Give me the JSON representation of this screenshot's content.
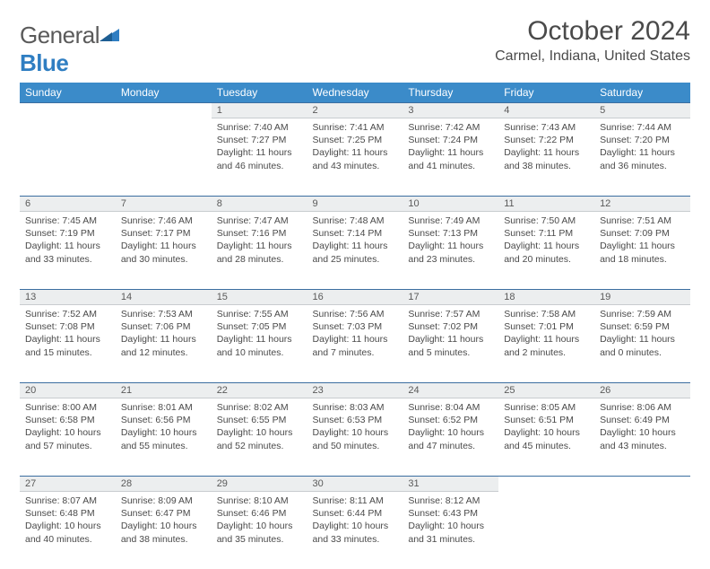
{
  "logo": {
    "text_general": "General",
    "text_blue": "Blue"
  },
  "title": "October 2024",
  "location": "Carmel, Indiana, United States",
  "day_headers": [
    "Sunday",
    "Monday",
    "Tuesday",
    "Wednesday",
    "Thursday",
    "Friday",
    "Saturday"
  ],
  "colors": {
    "header_bg": "#3b8bc9",
    "header_text": "#ffffff",
    "daynum_bg": "#eceeef",
    "rule": "#3b6ea0",
    "text": "#4a4a4a"
  },
  "weeks": [
    [
      null,
      null,
      {
        "n": "1",
        "sunrise": "7:40 AM",
        "sunset": "7:27 PM",
        "daylight": "11 hours and 46 minutes."
      },
      {
        "n": "2",
        "sunrise": "7:41 AM",
        "sunset": "7:25 PM",
        "daylight": "11 hours and 43 minutes."
      },
      {
        "n": "3",
        "sunrise": "7:42 AM",
        "sunset": "7:24 PM",
        "daylight": "11 hours and 41 minutes."
      },
      {
        "n": "4",
        "sunrise": "7:43 AM",
        "sunset": "7:22 PM",
        "daylight": "11 hours and 38 minutes."
      },
      {
        "n": "5",
        "sunrise": "7:44 AM",
        "sunset": "7:20 PM",
        "daylight": "11 hours and 36 minutes."
      }
    ],
    [
      {
        "n": "6",
        "sunrise": "7:45 AM",
        "sunset": "7:19 PM",
        "daylight": "11 hours and 33 minutes."
      },
      {
        "n": "7",
        "sunrise": "7:46 AM",
        "sunset": "7:17 PM",
        "daylight": "11 hours and 30 minutes."
      },
      {
        "n": "8",
        "sunrise": "7:47 AM",
        "sunset": "7:16 PM",
        "daylight": "11 hours and 28 minutes."
      },
      {
        "n": "9",
        "sunrise": "7:48 AM",
        "sunset": "7:14 PM",
        "daylight": "11 hours and 25 minutes."
      },
      {
        "n": "10",
        "sunrise": "7:49 AM",
        "sunset": "7:13 PM",
        "daylight": "11 hours and 23 minutes."
      },
      {
        "n": "11",
        "sunrise": "7:50 AM",
        "sunset": "7:11 PM",
        "daylight": "11 hours and 20 minutes."
      },
      {
        "n": "12",
        "sunrise": "7:51 AM",
        "sunset": "7:09 PM",
        "daylight": "11 hours and 18 minutes."
      }
    ],
    [
      {
        "n": "13",
        "sunrise": "7:52 AM",
        "sunset": "7:08 PM",
        "daylight": "11 hours and 15 minutes."
      },
      {
        "n": "14",
        "sunrise": "7:53 AM",
        "sunset": "7:06 PM",
        "daylight": "11 hours and 12 minutes."
      },
      {
        "n": "15",
        "sunrise": "7:55 AM",
        "sunset": "7:05 PM",
        "daylight": "11 hours and 10 minutes."
      },
      {
        "n": "16",
        "sunrise": "7:56 AM",
        "sunset": "7:03 PM",
        "daylight": "11 hours and 7 minutes."
      },
      {
        "n": "17",
        "sunrise": "7:57 AM",
        "sunset": "7:02 PM",
        "daylight": "11 hours and 5 minutes."
      },
      {
        "n": "18",
        "sunrise": "7:58 AM",
        "sunset": "7:01 PM",
        "daylight": "11 hours and 2 minutes."
      },
      {
        "n": "19",
        "sunrise": "7:59 AM",
        "sunset": "6:59 PM",
        "daylight": "11 hours and 0 minutes."
      }
    ],
    [
      {
        "n": "20",
        "sunrise": "8:00 AM",
        "sunset": "6:58 PM",
        "daylight": "10 hours and 57 minutes."
      },
      {
        "n": "21",
        "sunrise": "8:01 AM",
        "sunset": "6:56 PM",
        "daylight": "10 hours and 55 minutes."
      },
      {
        "n": "22",
        "sunrise": "8:02 AM",
        "sunset": "6:55 PM",
        "daylight": "10 hours and 52 minutes."
      },
      {
        "n": "23",
        "sunrise": "8:03 AM",
        "sunset": "6:53 PM",
        "daylight": "10 hours and 50 minutes."
      },
      {
        "n": "24",
        "sunrise": "8:04 AM",
        "sunset": "6:52 PM",
        "daylight": "10 hours and 47 minutes."
      },
      {
        "n": "25",
        "sunrise": "8:05 AM",
        "sunset": "6:51 PM",
        "daylight": "10 hours and 45 minutes."
      },
      {
        "n": "26",
        "sunrise": "8:06 AM",
        "sunset": "6:49 PM",
        "daylight": "10 hours and 43 minutes."
      }
    ],
    [
      {
        "n": "27",
        "sunrise": "8:07 AM",
        "sunset": "6:48 PM",
        "daylight": "10 hours and 40 minutes."
      },
      {
        "n": "28",
        "sunrise": "8:09 AM",
        "sunset": "6:47 PM",
        "daylight": "10 hours and 38 minutes."
      },
      {
        "n": "29",
        "sunrise": "8:10 AM",
        "sunset": "6:46 PM",
        "daylight": "10 hours and 35 minutes."
      },
      {
        "n": "30",
        "sunrise": "8:11 AM",
        "sunset": "6:44 PM",
        "daylight": "10 hours and 33 minutes."
      },
      {
        "n": "31",
        "sunrise": "8:12 AM",
        "sunset": "6:43 PM",
        "daylight": "10 hours and 31 minutes."
      },
      null,
      null
    ]
  ],
  "labels": {
    "sunrise": "Sunrise:",
    "sunset": "Sunset:",
    "daylight": "Daylight:"
  }
}
